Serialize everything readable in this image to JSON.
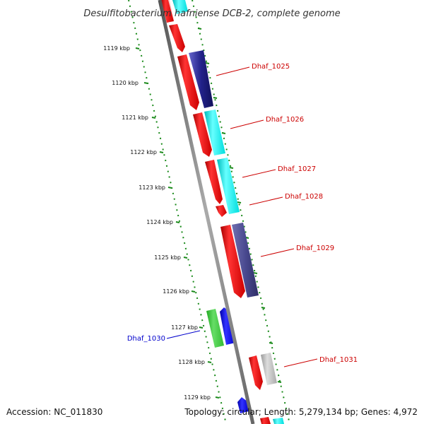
{
  "title": "Desulfitobacterium hafniense DCB-2, complete genome",
  "footer": {
    "accession": "Accession: NC_011830",
    "topology": "Topology: circular; Length: 5,279,134 bp; Genes: 4,972"
  },
  "ticks": [
    "1119 kbp",
    "1120 kbp",
    "1121 kbp",
    "1122 kbp",
    "1123 kbp",
    "1124 kbp",
    "1125 kbp",
    "1126 kbp",
    "1127 kbp",
    "1128 kbp",
    "1129 kbp"
  ],
  "genes": {
    "dhaf_1025": "Dhaf_1025",
    "dhaf_1026": "Dhaf_1026",
    "dhaf_1027": "Dhaf_1027",
    "dhaf_1028": "Dhaf_1028",
    "dhaf_1029": "Dhaf_1029",
    "dhaf_1030": "Dhaf_1030",
    "dhaf_1031": "Dhaf_1031"
  },
  "colors": {
    "backbone": "#808080",
    "ruler": "#1a8a1a",
    "label_red": "#cc0000",
    "label_blue": "#0000cc",
    "cds_red": "#ff0000",
    "cds_cyan": "#00ffff",
    "cds_navy": "#1a1a80",
    "cds_slate": "#4a4a90",
    "cds_blue": "#0000ff",
    "cds_green": "#33cc33",
    "cds_grey": "#bbbbbb",
    "cds_pink": "#ffcccc"
  }
}
